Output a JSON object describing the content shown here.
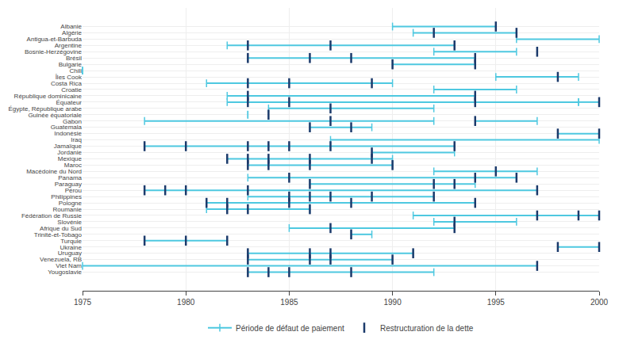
{
  "chart_data": {
    "type": "timeline",
    "orientation": "horizontal",
    "categories": [
      "Albanie",
      "Algérie",
      "Antigua-et-Barbuda",
      "Argentine",
      "Bosnie-Herzégovine",
      "Brésil",
      "Bulgarie",
      "Chili",
      "Îles Cook",
      "Costa Rica",
      "Croatie",
      "République dominicaine",
      "Équateur",
      "Égypte, République arabe",
      "Guinée équatoriale",
      "Gabon",
      "Guatemala",
      "Indonésie",
      "Iraq",
      "Jamaïque",
      "Jordanie",
      "Mexique",
      "Maroc",
      "Macédoine du Nord",
      "Panama",
      "Paraguay",
      "Pérou",
      "Philippines",
      "Pologne",
      "Roumanie",
      "Fédération de Russie",
      "Slovénie",
      "Afrique du Sud",
      "Trinité-et-Tobago",
      "Turquie",
      "Ukraine",
      "Uruguay",
      "Venezuela, RB",
      "Viet Nam",
      "Yougoslavie"
    ],
    "series": [
      {
        "name": "Période de défaut de paiement",
        "type": "range",
        "color": "#4EC8E0",
        "values": [
          [
            [
              1990,
              1995
            ]
          ],
          [
            [
              1991,
              1996
            ]
          ],
          [
            [
              1996,
              2000
            ]
          ],
          [
            [
              1982,
              1993
            ]
          ],
          [
            [
              1992,
              1996
            ]
          ],
          [
            [
              1983,
              1994
            ]
          ],
          [
            [
              1990,
              1994
            ]
          ],
          [
            [
              1975,
              1975
            ]
          ],
          [
            [
              1995,
              1999
            ]
          ],
          [
            [
              1981,
              1990
            ]
          ],
          [
            [
              1992,
              1996
            ]
          ],
          [
            [
              1982,
              1994
            ]
          ],
          [
            [
              1982,
              1999
            ],
            [
              1999,
              2000
            ]
          ],
          [
            [
              1984,
              1992
            ]
          ],
          [
            [
              1983,
              1983
            ]
          ],
          [
            [
              1978,
              1992
            ],
            [
              1994,
              1997
            ]
          ],
          [
            [
              1986,
              1989
            ]
          ],
          [
            [
              1998,
              2000
            ]
          ],
          [
            [
              1987,
              2000
            ]
          ],
          [
            [
              1978,
              1993
            ]
          ],
          [
            [
              1989,
              1993
            ]
          ],
          [
            [
              1982,
              1990
            ]
          ],
          [
            [
              1983,
              1990
            ]
          ],
          [
            [
              1992,
              1997
            ]
          ],
          [
            [
              1983,
              1996
            ]
          ],
          [
            [
              1986,
              1994
            ]
          ],
          [
            [
              1978,
              1997
            ]
          ],
          [
            [
              1983,
              1992
            ]
          ],
          [
            [
              1981,
              1994
            ]
          ],
          [
            [
              1981,
              1986
            ]
          ],
          [
            [
              1991,
              2000
            ]
          ],
          [
            [
              1992,
              1996
            ]
          ],
          [
            [
              1985,
              1993
            ]
          ],
          [
            [
              1988,
              1989
            ]
          ],
          [
            [
              1978,
              1982
            ]
          ],
          [
            [
              1998,
              2000
            ]
          ],
          [
            [
              1983,
              1991
            ]
          ],
          [
            [
              1983,
              1990
            ]
          ],
          [
            [
              1975,
              1997
            ]
          ],
          [
            [
              1983,
              1992
            ]
          ]
        ]
      },
      {
        "name": "Restructuration de la dette",
        "type": "event",
        "marker": "line-ns",
        "color": "#1B3A6B",
        "values": [
          [
            1995
          ],
          [
            1992,
            1996
          ],
          [],
          [
            1983,
            1987,
            1993
          ],
          [
            1997
          ],
          [
            1983,
            1986,
            1988,
            1994
          ],
          [
            1990,
            1994
          ],
          [],
          [
            1998
          ],
          [
            1983,
            1985,
            1989
          ],
          [],
          [
            1983,
            1994
          ],
          [
            1983,
            1985,
            1994,
            2000
          ],
          [
            1987
          ],
          [
            1984
          ],
          [
            1987,
            1994
          ],
          [
            1986,
            1988
          ],
          [
            1998,
            2000
          ],
          [],
          [
            1978,
            1980,
            1983,
            1984,
            1985,
            1987,
            1993
          ],
          [
            1989
          ],
          [
            1982,
            1983,
            1984,
            1986,
            1989
          ],
          [
            1983,
            1984,
            1986,
            1990
          ],
          [
            1995
          ],
          [
            1985,
            1994,
            1996
          ],
          [
            1986,
            1992,
            1993
          ],
          [
            1978,
            1979,
            1980,
            1983,
            1997
          ],
          [
            1985,
            1986,
            1987,
            1989,
            1992
          ],
          [
            1981,
            1982,
            1985,
            1988,
            1994
          ],
          [
            1982,
            1983,
            1986
          ],
          [
            1997,
            1999,
            2000
          ],
          [
            1993
          ],
          [
            1987,
            1993
          ],
          [
            1988
          ],
          [
            1978,
            1980,
            1982
          ],
          [
            1998,
            2000
          ],
          [
            1983,
            1986,
            1987,
            1991
          ],
          [
            1983,
            1986,
            1987,
            1990
          ],
          [
            1997
          ],
          [
            1983,
            1984,
            1985,
            1988
          ]
        ]
      }
    ],
    "xlim": [
      1975,
      2000
    ],
    "xticks": [
      1975,
      1980,
      1985,
      1990,
      1995,
      2000
    ],
    "grid": true,
    "legend": "bottom"
  }
}
